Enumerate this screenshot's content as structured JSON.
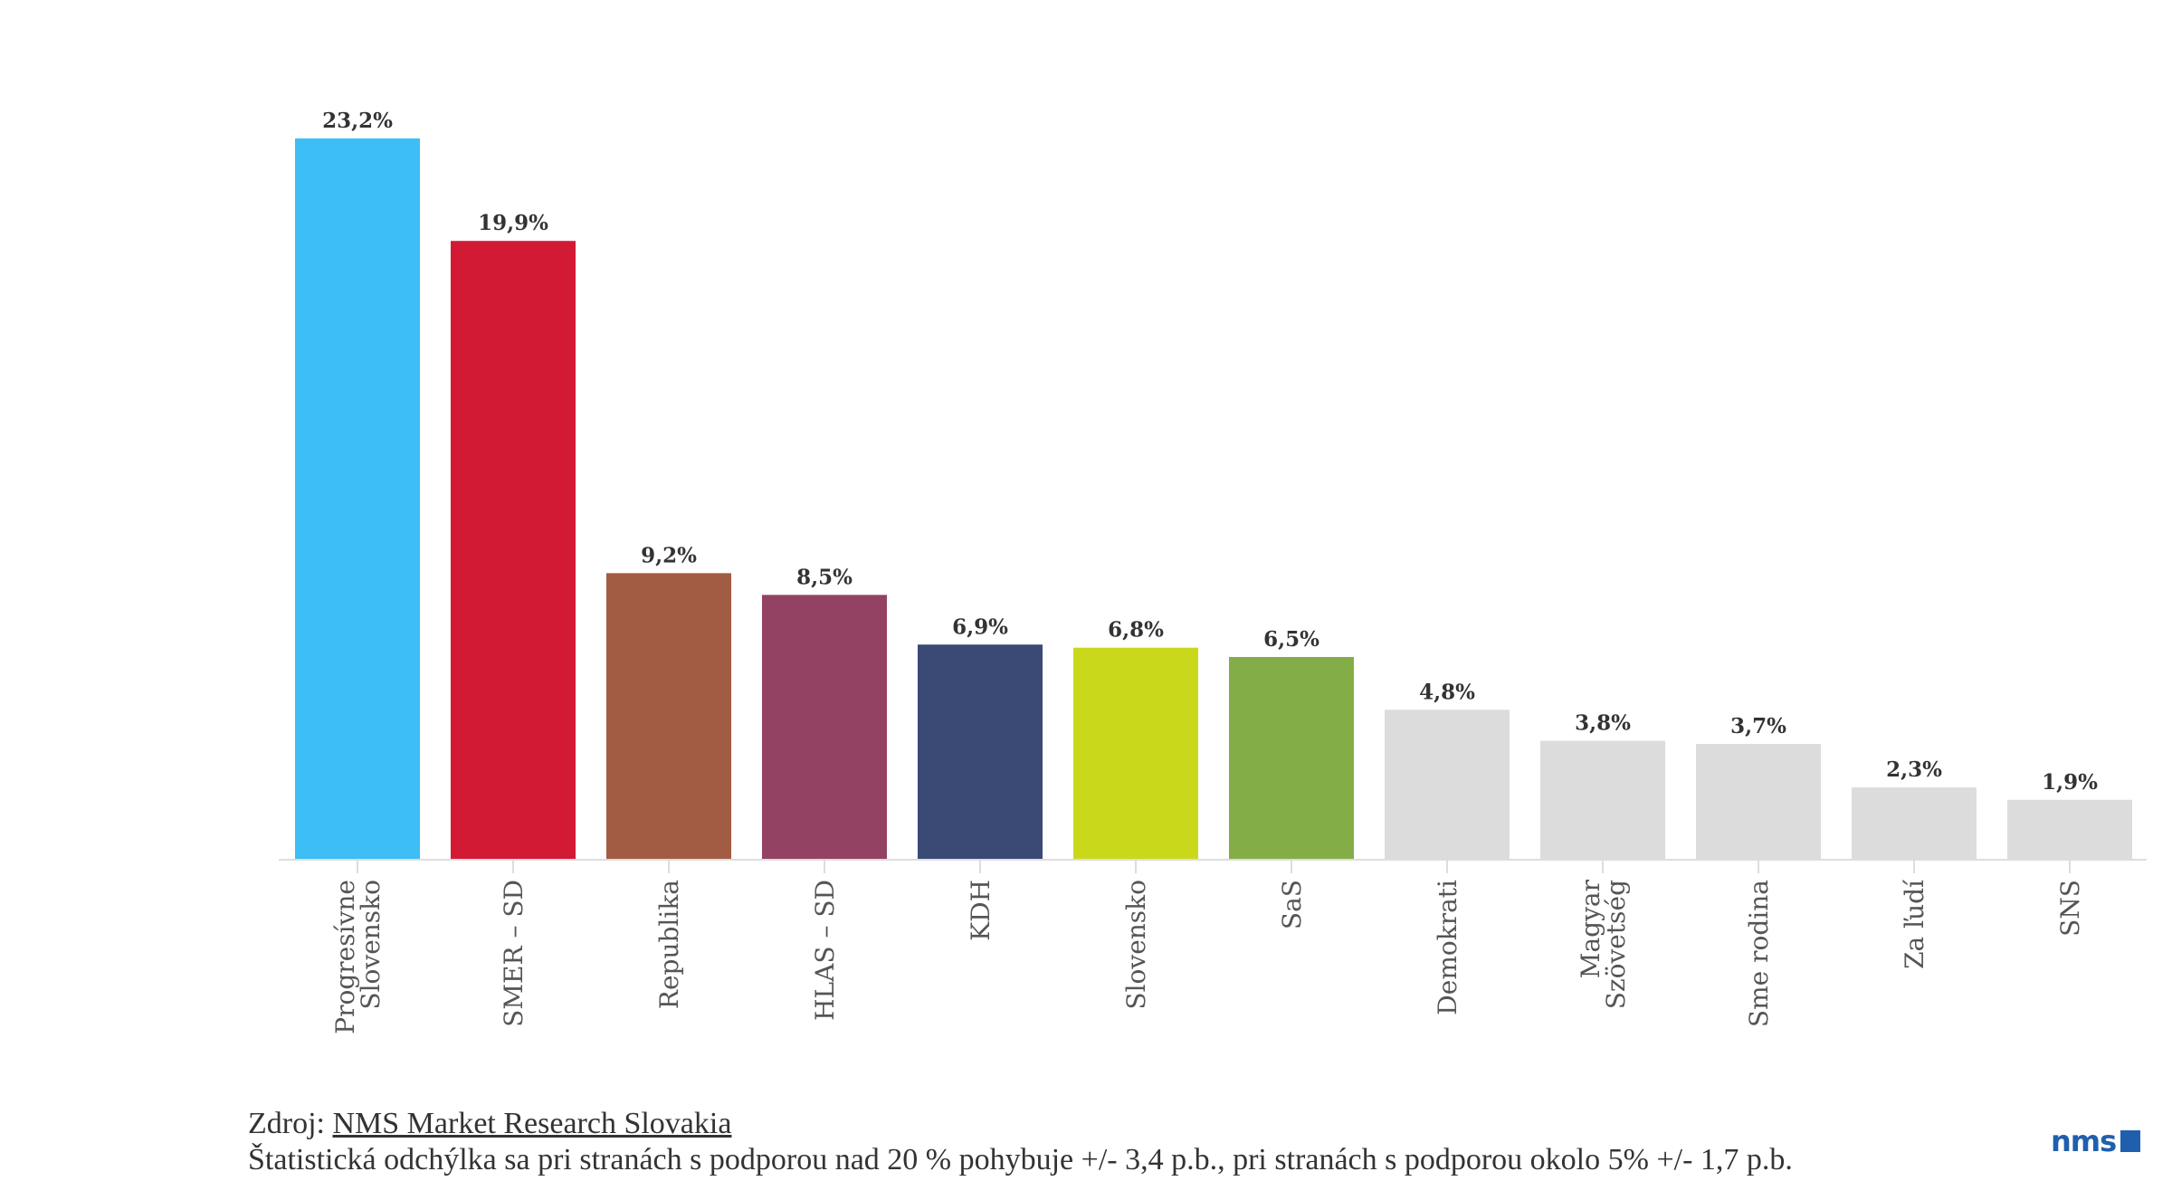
{
  "chart_data": {
    "type": "bar",
    "title": "",
    "xlabel": "",
    "ylabel": "",
    "ylim": [
      0,
      23.2
    ],
    "grid": false,
    "categories": [
      [
        "Progresívne",
        "Slovensko"
      ],
      [
        "SMER – SD"
      ],
      [
        "Republika"
      ],
      [
        "HLAS – SD"
      ],
      [
        "KDH"
      ],
      [
        "Slovensko"
      ],
      [
        "SaS"
      ],
      [
        "Demokrati"
      ],
      [
        "Magyar",
        "Szövetség"
      ],
      [
        "Sme rodina"
      ],
      [
        "Za ľudí"
      ],
      [
        "SNS"
      ]
    ],
    "values": [
      23.2,
      19.9,
      9.2,
      8.5,
      6.9,
      6.8,
      6.5,
      4.8,
      3.8,
      3.7,
      2.3,
      1.9
    ],
    "value_labels": [
      "23,2%",
      "19,9%",
      "9,2%",
      "8,5%",
      "6,9%",
      "6,8%",
      "6,5%",
      "4,8%",
      "3,8%",
      "3,7%",
      "2,3%",
      "1,9%"
    ],
    "colors": [
      "#3dbef5",
      "#d21a35",
      "#a35c44",
      "#944263",
      "#3a4a75",
      "#c9d81b",
      "#83ae47",
      "#dcdcdc",
      "#dcdcdc",
      "#dcdcdc",
      "#dcdcdc",
      "#dcdcdc"
    ]
  },
  "footer": {
    "source_prefix": "Zdroj: ",
    "source_link": "NMS Market Research Slovakia",
    "note": "Štatistická odchýlka sa pri stranách s podporou nad 20 % pohybuje +/- 3,4 p.b., pri stranách s podporou okolo 5% +/- 1,7 p.b."
  },
  "logo": {
    "text": "nms"
  }
}
